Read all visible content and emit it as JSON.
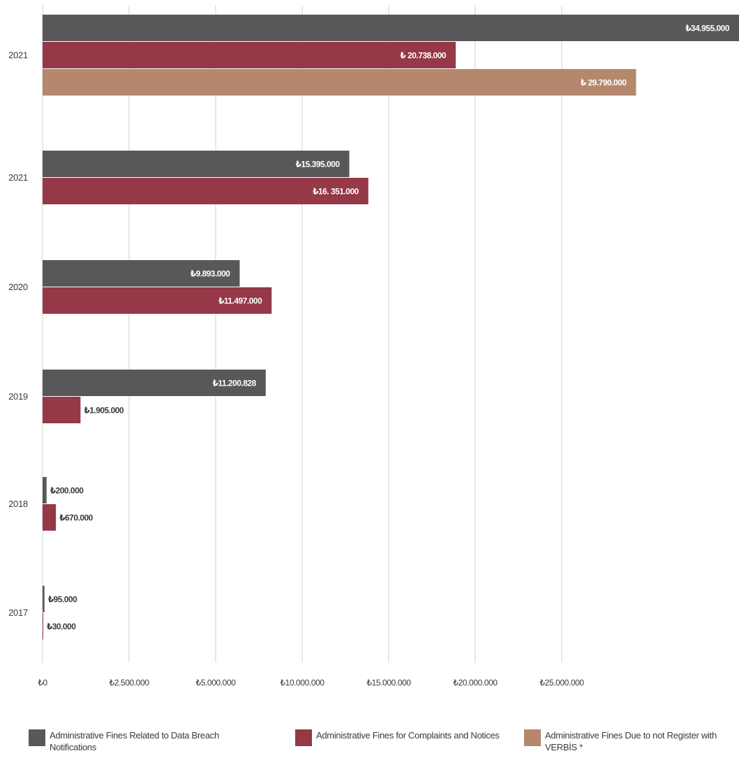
{
  "chart_data": {
    "type": "bar",
    "orientation": "horizontal",
    "grid": true,
    "legend_position": "bottom",
    "currency_symbol": "₺",
    "xlim": [
      0,
      34955000
    ],
    "x_ticks": [
      0,
      2500000,
      5000000,
      10000000,
      15000000,
      20000000,
      25000000
    ],
    "x_tick_labels": [
      "₺0",
      "₺2.500.000",
      "₺5.000.000",
      "₺10.000.000",
      "₺15.000.000",
      "₺20.000.000",
      "₺25.000.000"
    ],
    "colors": {
      "data_breach": "#58585a",
      "complaints": "#953848",
      "verbis": "#b5876c",
      "grid": "#cfcfcf",
      "text": "#3a3a3a"
    },
    "series": [
      {
        "key": "data_breach",
        "name": "Administrative Fines Related to Data Breach Notifications"
      },
      {
        "key": "complaints",
        "name": "Administrative Fines for Complaints and Notices"
      },
      {
        "key": "verbis",
        "name": "Administrative Fines Due to not Register with VERBİS *"
      }
    ],
    "groups": [
      {
        "year": "2021",
        "bars": [
          {
            "series": "data_breach",
            "value": 34955000,
            "label": "₺34.955.000"
          },
          {
            "series": "complaints",
            "value": 20738000,
            "label": "₺ 20.738.000"
          },
          {
            "series": "verbis",
            "value": 29790000,
            "label": "₺ 29.790.000"
          }
        ]
      },
      {
        "year": "2021",
        "bars": [
          {
            "series": "data_breach",
            "value": 15395000,
            "label": "₺15.395.000"
          },
          {
            "series": "complaints",
            "value": 16351000,
            "label": "₺16. 351.000"
          }
        ]
      },
      {
        "year": "2020",
        "bars": [
          {
            "series": "data_breach",
            "value": 9893000,
            "label": "₺9.893.000"
          },
          {
            "series": "complaints",
            "value": 11497000,
            "label": "₺11.497.000"
          }
        ]
      },
      {
        "year": "2019",
        "bars": [
          {
            "series": "data_breach",
            "value": 11200828,
            "label": "₺11.200.828"
          },
          {
            "series": "complaints",
            "value": 1905000,
            "label": "₺1.905.000"
          }
        ]
      },
      {
        "year": "2018",
        "bars": [
          {
            "series": "data_breach",
            "value": 200000,
            "label": "₺200.000"
          },
          {
            "series": "complaints",
            "value": 670000,
            "label": "₺670.000"
          }
        ]
      },
      {
        "year": "2017",
        "bars": [
          {
            "series": "data_breach",
            "value": 95000,
            "label": "₺95.000"
          },
          {
            "series": "complaints",
            "value": 30000,
            "label": "₺30.000"
          }
        ]
      }
    ]
  }
}
